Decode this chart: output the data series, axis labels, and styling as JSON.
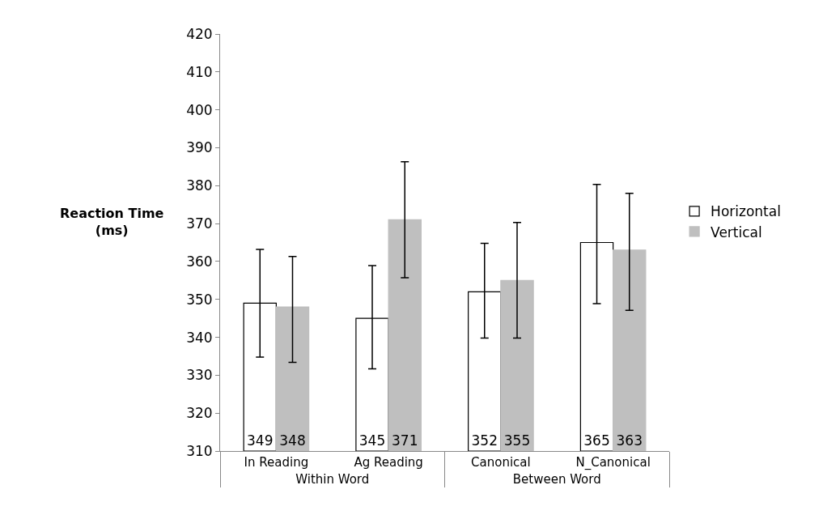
{
  "chart_data": {
    "type": "bar",
    "ylabel": "Reaction Time\n(ms)",
    "categories": [
      "In Reading",
      "Ag Reading",
      "Canonical",
      "N_Canonical"
    ],
    "series": [
      {
        "name": "Horizontal",
        "color": "#ffffff",
        "values": [
          349,
          345,
          352,
          365
        ],
        "errors": [
          [
            334.8,
            363.2
          ],
          [
            331.7,
            358.9
          ],
          [
            339.8,
            364.8
          ],
          [
            348.9,
            380.3
          ]
        ]
      },
      {
        "name": "Vertical",
        "color": "#bfbfbf",
        "values": [
          348,
          371,
          355,
          363
        ],
        "errors": [
          [
            333.4,
            361.3
          ],
          [
            355.7,
            386.3
          ],
          [
            339.8,
            370.3
          ],
          [
            347.1,
            378.0
          ]
        ]
      }
    ],
    "ylim": [
      310,
      420
    ],
    "yticks": [
      310,
      320,
      330,
      340,
      350,
      360,
      370,
      380,
      390,
      400,
      410,
      420
    ],
    "annotations": [
      "Within Word",
      "Between Word"
    ],
    "data_labels": true,
    "legend": "right",
    "grid": false
  }
}
